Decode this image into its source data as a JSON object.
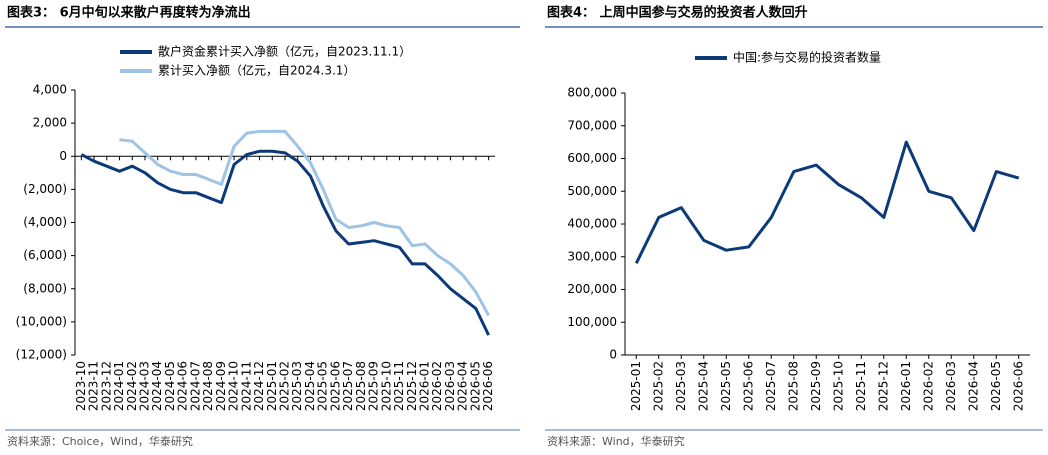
{
  "chart_data": [
    {
      "type": "line",
      "title": "图表3：  6月中旬以来散户再度转为净流出",
      "source": "资料来源：Choice，Wind，华泰研究",
      "categories": [
        "2023-10",
        "2023-11",
        "2023-12",
        "2024-01",
        "2024-02",
        "2024-03",
        "2024-04",
        "2024-05",
        "2024-06",
        "2024-07",
        "2024-08",
        "2024-09",
        "2024-10",
        "2024-11",
        "2024-12",
        "2025-01",
        "2025-02",
        "2025-03",
        "2025-04",
        "2025-05",
        "2025-06",
        "2025-07",
        "2025-08",
        "2025-09",
        "2025-10",
        "2025-11",
        "2025-12",
        "2026-01",
        "2026-02",
        "2026-03",
        "2026-04",
        "2026-05",
        "2026-06"
      ],
      "series": [
        {
          "name": "散户资金累计买入净额（亿元，自2023.11.1）",
          "color": "#0c3a78",
          "values": [
            100,
            -300,
            -600,
            -900,
            -600,
            -1000,
            -1600,
            -2000,
            -2200,
            -2200,
            -2500,
            -2800,
            -500,
            100,
            300,
            300,
            200,
            -300,
            -1200,
            -3000,
            -4500,
            -5300,
            -5200,
            -5100,
            -5300,
            -5500,
            -6500,
            -6500,
            -7200,
            -8000,
            -8600,
            -9200,
            -10800
          ]
        },
        {
          "name": "累计买入净额（亿元，自2024.3.1）",
          "color": "#9dc3e6",
          "values": [
            null,
            null,
            null,
            1000,
            900,
            200,
            -500,
            -900,
            -1100,
            -1100,
            -1400,
            -1700,
            600,
            1400,
            1500,
            1500,
            1500,
            600,
            -400,
            -2000,
            -3800,
            -4300,
            -4200,
            -4000,
            -4200,
            -4300,
            -5400,
            -5300,
            -6000,
            -6500,
            -7200,
            -8200,
            -9600
          ]
        }
      ],
      "ylim": [
        -12000,
        4000
      ],
      "yticks": [
        {
          "value": 4000,
          "label": "4,000"
        },
        {
          "value": 2000,
          "label": "2,000"
        },
        0,
        {
          "value": -2000,
          "label": "(2,000)"
        },
        {
          "value": -4000,
          "label": "(4,000)"
        },
        {
          "value": -6000,
          "label": "(6,000)"
        },
        {
          "value": -8000,
          "label": "(8,000)"
        },
        {
          "value": -10000,
          "label": "(10,000)"
        },
        {
          "value": -12000,
          "label": "(12,000)"
        }
      ],
      "grid": false,
      "legend": "top"
    },
    {
      "type": "line",
      "title": "图表4：  上周中国参与交易的投资者人数回升",
      "source": "资料来源：Wind，华泰研究",
      "categories": [
        "2025-01",
        "2025-02",
        "2025-03",
        "2025-04",
        "2025-05",
        "2025-06",
        "2025-07",
        "2025-08",
        "2025-09",
        "2025-10",
        "2025-11",
        "2025-12",
        "2026-01",
        "2026-02",
        "2026-03",
        "2026-04",
        "2026-05",
        "2026-06"
      ],
      "series": [
        {
          "name": "中国:参与交易的投资者数量",
          "color": "#0c3a78",
          "values": [
            280000,
            420000,
            450000,
            350000,
            320000,
            330000,
            420000,
            560000,
            580000,
            520000,
            480000,
            420000,
            650000,
            500000,
            480000,
            380000,
            560000,
            540000
          ]
        }
      ],
      "ylim": [
        0,
        800000
      ],
      "yticks": [
        0,
        {
          "value": 100000,
          "label": "100,000"
        },
        {
          "value": 200000,
          "label": "200,000"
        },
        {
          "value": 300000,
          "label": "300,000"
        },
        {
          "value": 400000,
          "label": "400,000"
        },
        {
          "value": 500000,
          "label": "500,000"
        },
        {
          "value": 600000,
          "label": "600,000"
        },
        {
          "value": 700000,
          "label": "700,000"
        },
        {
          "value": 800000,
          "label": "800,000"
        }
      ],
      "grid": false,
      "legend": "top"
    }
  ]
}
